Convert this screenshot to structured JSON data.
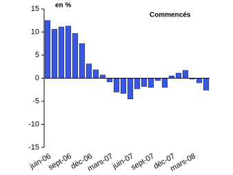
{
  "chart_data": {
    "type": "bar",
    "title": "en %",
    "subtitle": "Commencés",
    "categories": [
      "juin-06",
      null,
      null,
      "sept-06",
      null,
      null,
      "déc-06",
      null,
      null,
      "mars-07",
      null,
      null,
      "juin-07",
      null,
      null,
      "sept-07",
      null,
      null,
      "déc-07",
      null,
      null,
      "mars-08",
      null,
      null
    ],
    "values": [
      12.5,
      10.6,
      11.1,
      11.3,
      9.7,
      7.5,
      3.1,
      1.8,
      0.7,
      -0.8,
      -3.0,
      -3.3,
      -4.5,
      -2.3,
      -1.8,
      -2.0,
      -0.5,
      -2.0,
      0.5,
      1.1,
      1.7,
      -0.2,
      -1.0,
      -2.6
    ],
    "color": "#3a57e0",
    "ylim": [
      -15,
      15
    ],
    "yticks": [
      -15,
      -10,
      -5,
      0,
      5,
      10,
      15
    ],
    "grid": false
  }
}
